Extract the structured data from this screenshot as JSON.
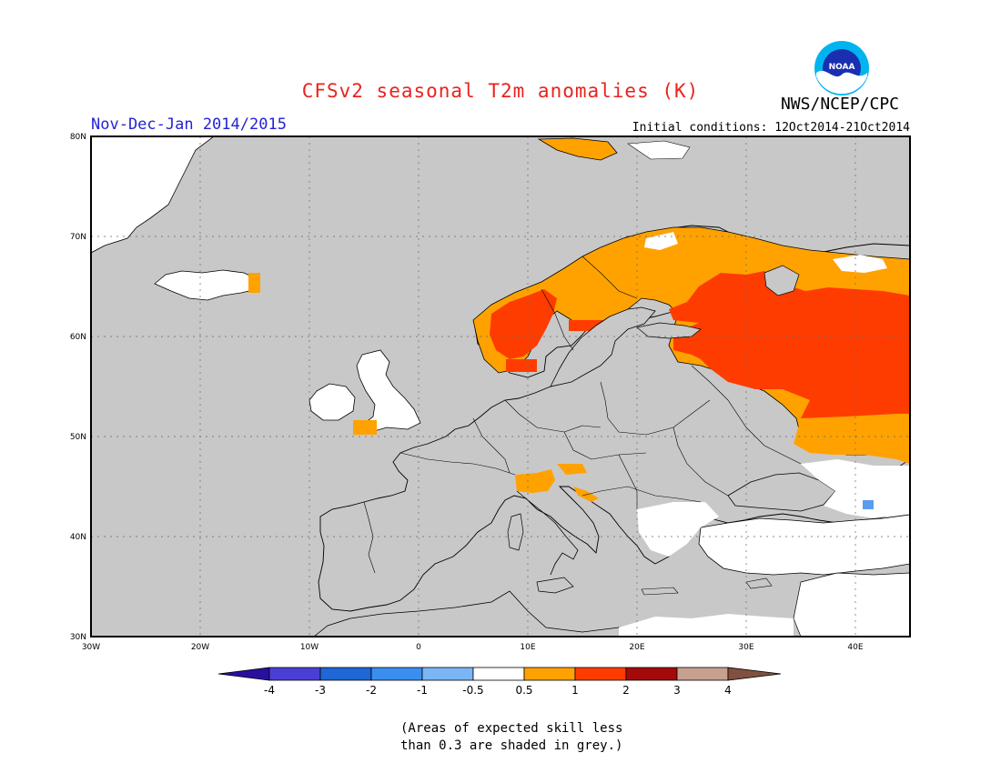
{
  "header": {
    "title": "CFSv2 seasonal T2m anomalies (K)",
    "agency": "NWS/NCEP/CPC",
    "logo_text": "NOAA",
    "period": "Nov-Dec-Jan 2014/2015",
    "initial_conditions": "Initial conditions: 12Oct2014-21Oct2014"
  },
  "map": {
    "region": "Europe",
    "lon_range": [
      -30,
      45
    ],
    "lat_range": [
      30,
      80
    ],
    "lon_ticks": [
      "30W",
      "20W",
      "10W",
      "0",
      "10E",
      "20E",
      "30E",
      "40E"
    ],
    "lat_ticks": [
      "80N",
      "70N",
      "60N",
      "50N",
      "40N",
      "30N"
    ],
    "grid": true,
    "colors": {
      "grey_low_skill": "#c8c8c8",
      "ocean_grey": "#c8c8c8",
      "neutral": "#ffffff",
      "orange_0_5_to_1": "#ffa200",
      "red_1_to_2": "#ff3c00",
      "light_blue": "#5a9cf0",
      "coast": "#000000"
    },
    "anomaly_regions": [
      {
        "name": "Scandinavia",
        "class": "0.5-1"
      },
      {
        "name": "Western Norway",
        "class": "1-2"
      },
      {
        "name": "Western Russia",
        "class": "1-2"
      },
      {
        "name": "Northern Russia",
        "class": "0.5-1"
      },
      {
        "name": "Svalbard",
        "class": "0.5-1"
      },
      {
        "name": "Northern Italy",
        "class": "0.5-1"
      },
      {
        "name": "Southern Russia",
        "class": "0.5-1"
      }
    ]
  },
  "colorbar": {
    "labels": [
      "-4",
      "-3",
      "-2",
      "-1",
      "-0.5",
      "0.5",
      "1",
      "2",
      "3",
      "4"
    ],
    "colors": [
      "#2a0f9e",
      "#4a3fd4",
      "#1f66d6",
      "#3a8ef0",
      "#7ab6f5",
      "#ffffff",
      "#ffa200",
      "#ff3c00",
      "#a40a0a",
      "#c8a090",
      "#805040"
    ]
  },
  "footnote": {
    "line1": "(Areas of expected skill less",
    "line2": "than 0.3 are shaded in grey.)"
  }
}
